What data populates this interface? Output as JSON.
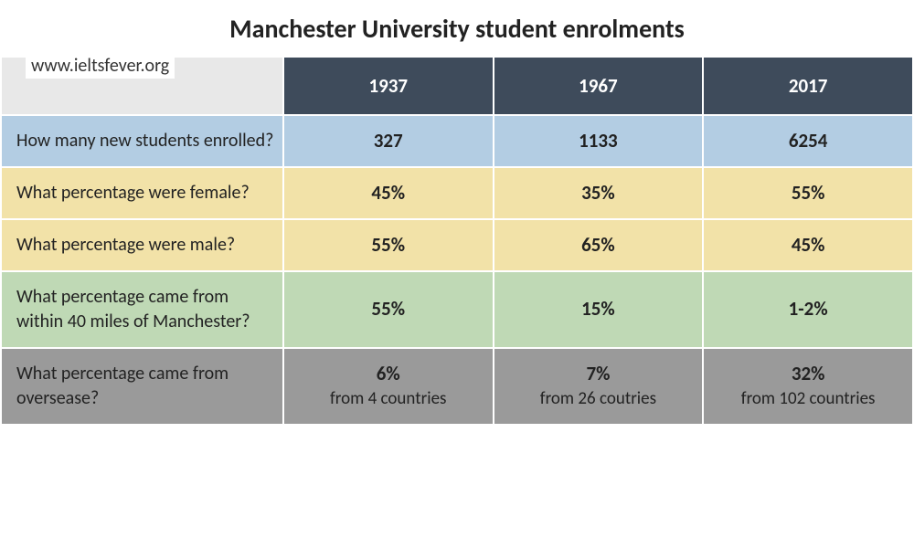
{
  "title": "Manchester University student enrolments",
  "watermark": "www.ieltsfever.org",
  "table": {
    "type": "table",
    "years": [
      "1937",
      "1967",
      "2017"
    ],
    "header_bg": "#3e4b5b",
    "header_text_color": "#ffffff",
    "corner_bg": "#e8e8e8",
    "border_spacing": 2,
    "title_fontsize": 28,
    "header_fontsize": 21,
    "label_fontsize": 20,
    "value_fontsize": 21,
    "sub_fontsize": 19,
    "label_col_width_pct": 31,
    "data_col_width_pct": 23,
    "row_colors": {
      "blue": "#b3cde3",
      "yellow": "#f2e2a8",
      "green": "#bfd9b5",
      "gray": "#9a9a9a"
    },
    "rows": [
      {
        "label": "How many new students enrolled?",
        "values": [
          "327",
          "1133",
          "6254"
        ],
        "color_key": "blue"
      },
      {
        "label": "What percentage were female?",
        "values": [
          "45%",
          "35%",
          "55%"
        ],
        "color_key": "yellow"
      },
      {
        "label": "What percentage were male?",
        "values": [
          "55%",
          "65%",
          "45%"
        ],
        "color_key": "yellow"
      },
      {
        "label": "What percentage came from within 40 miles of Manchester?",
        "values": [
          "55%",
          "15%",
          "1-2%"
        ],
        "color_key": "green"
      },
      {
        "label": "What percentage came from oversease?",
        "values": [
          "6%",
          "7%",
          "32%"
        ],
        "sub": [
          "from 4 countries",
          "from 26 coutries",
          "from 102 countries"
        ],
        "color_key": "gray"
      }
    ]
  }
}
